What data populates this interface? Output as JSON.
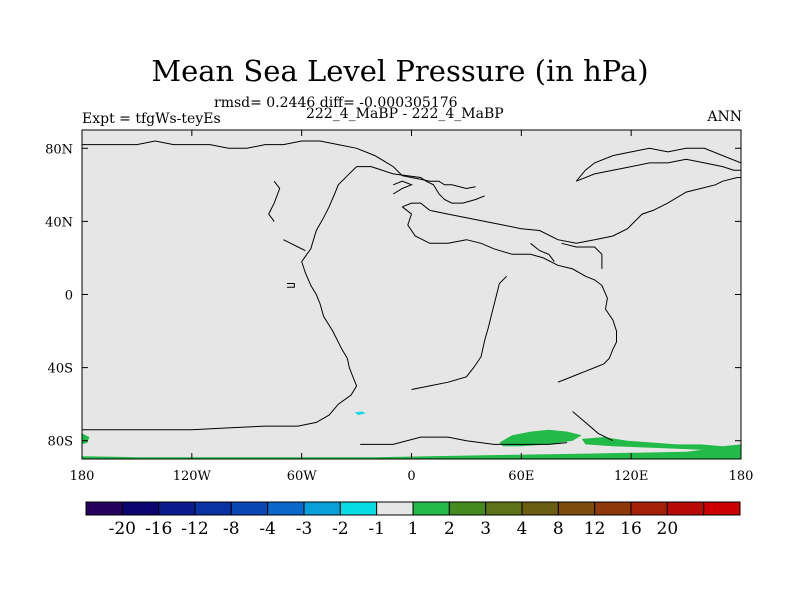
{
  "title": "Mean Sea Level Pressure (in hPa)",
  "stats_line": "rmsd= 0.2446 diff= -0.000305176",
  "left_label": "Expt = tfgWs-teyEs",
  "center_label": "222_4_MaBP - 222_4_MaBP",
  "right_label": "ANN",
  "chart_data": {
    "type": "heatmap",
    "title": "Mean Sea Level Pressure (in hPa)",
    "xlim": [
      -180,
      180
    ],
    "ylim": [
      -90,
      90
    ],
    "x_ticks": [
      {
        "value": -180,
        "label": "180"
      },
      {
        "value": -120,
        "label": "120W"
      },
      {
        "value": -60,
        "label": "60W"
      },
      {
        "value": 0,
        "label": "0"
      },
      {
        "value": 60,
        "label": "60E"
      },
      {
        "value": 120,
        "label": "120E"
      },
      {
        "value": 180,
        "label": "180"
      }
    ],
    "y_ticks": [
      {
        "value": 80,
        "label": "80N"
      },
      {
        "value": 40,
        "label": "40N"
      },
      {
        "value": 0,
        "label": "0"
      },
      {
        "value": -40,
        "label": "40S"
      },
      {
        "value": -80,
        "label": "80S"
      }
    ],
    "background_color": "#e6e6e6",
    "colorbar": {
      "colors": [
        "#24025e",
        "#0c0570",
        "#0b1d8c",
        "#0a32a3",
        "#0847b4",
        "#0a69cb",
        "#09a0da",
        "#09dbe5",
        "#e6e6e6",
        "#22ba48",
        "#468b1f",
        "#5e7317",
        "#6b5e10",
        "#7d4c0c",
        "#8e3709",
        "#a62007",
        "#b80b06",
        "#cc0000"
      ],
      "labels": [
        "-20",
        "-16",
        "-12",
        "-8",
        "-4",
        "-3",
        "-2",
        "-1",
        "1",
        "2",
        "3",
        "4",
        "8",
        "12",
        "16",
        "20"
      ]
    },
    "anomaly_regions": [
      {
        "color": "#22ba48",
        "value": "1 to 2",
        "location": "southern band along 88S-90S, 180W to 180E",
        "polygon": [
          [
            -180,
            -88.5
          ],
          [
            -150,
            -89
          ],
          [
            -90,
            -89
          ],
          [
            -20,
            -89
          ],
          [
            40,
            -88
          ],
          [
            100,
            -87
          ],
          [
            150,
            -86
          ],
          [
            175,
            -83
          ],
          [
            180,
            -83
          ],
          [
            180,
            -90
          ],
          [
            -180,
            -90
          ]
        ]
      },
      {
        "color": "#22ba48",
        "value": "1 to 2",
        "location": "Antarctic coast off 50E-100E",
        "polygon": [
          [
            48,
            -81
          ],
          [
            55,
            -77
          ],
          [
            65,
            -75
          ],
          [
            75,
            -74
          ],
          [
            85,
            -75
          ],
          [
            93,
            -77
          ],
          [
            88,
            -80
          ],
          [
            75,
            -82
          ],
          [
            60,
            -83
          ],
          [
            50,
            -83
          ]
        ]
      },
      {
        "color": "#22ba48",
        "value": "1 to 2",
        "location": "Antarctic coast 95E-175E",
        "polygon": [
          [
            93,
            -79
          ],
          [
            105,
            -78
          ],
          [
            118,
            -80
          ],
          [
            132,
            -81
          ],
          [
            145,
            -82
          ],
          [
            158,
            -82
          ],
          [
            170,
            -83
          ],
          [
            180,
            -82
          ],
          [
            180,
            -86
          ],
          [
            160,
            -85
          ],
          [
            135,
            -84
          ],
          [
            110,
            -83
          ],
          [
            95,
            -82
          ]
        ]
      },
      {
        "color": "#22ba48",
        "value": "1 to 2",
        "location": "near 180W, 78S",
        "polygon": [
          [
            -180,
            -76
          ],
          [
            -176,
            -78
          ],
          [
            -177,
            -81
          ],
          [
            -180,
            -82
          ]
        ]
      },
      {
        "color": "#09dbe5",
        "value": "-2 to -1",
        "location": "small spot near 30W, 65S",
        "polygon": [
          [
            -31,
            -64.5
          ],
          [
            -27,
            -64
          ],
          [
            -25,
            -65
          ],
          [
            -29,
            -66
          ]
        ]
      }
    ],
    "coastlines": [
      [
        [
          -180,
          82
        ],
        [
          -150,
          82
        ],
        [
          -140,
          84
        ],
        [
          -130,
          82
        ],
        [
          -120,
          82
        ],
        [
          -110,
          82
        ],
        [
          -100,
          80
        ],
        [
          -90,
          80
        ],
        [
          -80,
          82
        ],
        [
          -70,
          82
        ],
        [
          -60,
          84
        ],
        [
          -50,
          84
        ],
        [
          -40,
          82
        ],
        [
          -30,
          80
        ],
        [
          -20,
          76
        ],
        [
          -10,
          70
        ],
        [
          -5,
          65
        ],
        [
          0,
          64
        ],
        [
          5,
          63
        ],
        [
          10,
          62
        ],
        [
          15,
          62
        ],
        [
          18,
          60
        ],
        [
          22,
          60
        ],
        [
          30,
          58
        ],
        [
          35,
          59
        ]
      ],
      [
        [
          -180,
          -74
        ],
        [
          -150,
          -74
        ],
        [
          -120,
          -74
        ],
        [
          -100,
          -73
        ],
        [
          -80,
          -72
        ],
        [
          -62,
          -72
        ],
        [
          -52,
          -70
        ],
        [
          -45,
          -66
        ],
        [
          -40,
          -60
        ],
        [
          -33,
          -55
        ],
        [
          -30,
          -50
        ],
        [
          -32,
          -45
        ],
        [
          -34,
          -40
        ],
        [
          -35,
          -35
        ],
        [
          -38,
          -30
        ],
        [
          -43,
          -20
        ],
        [
          -48,
          -12
        ],
        [
          -50,
          -5
        ],
        [
          -52,
          0
        ],
        [
          -55,
          5
        ],
        [
          -58,
          12
        ],
        [
          -60,
          18
        ],
        [
          -55,
          25
        ],
        [
          -52,
          35
        ],
        [
          -48,
          42
        ],
        [
          -45,
          48
        ],
        [
          -42,
          55
        ],
        [
          -40,
          60
        ],
        [
          -35,
          65
        ],
        [
          -30,
          70
        ]
      ],
      [
        [
          -75,
          62
        ],
        [
          -72,
          58
        ],
        [
          -75,
          50
        ],
        [
          -78,
          44
        ],
        [
          -75,
          40
        ]
      ],
      [
        [
          -70,
          30
        ],
        [
          -66,
          28
        ],
        [
          -62,
          26
        ],
        [
          -58,
          24
        ]
      ],
      [
        [
          -68,
          6
        ],
        [
          -64,
          6
        ],
        [
          -64,
          4
        ],
        [
          -68,
          4
        ]
      ],
      [
        [
          -30,
          70
        ],
        [
          -22,
          70
        ],
        [
          -10,
          66
        ],
        [
          5,
          64
        ],
        [
          8,
          62
        ],
        [
          12,
          60
        ],
        [
          15,
          55
        ],
        [
          18,
          52
        ],
        [
          22,
          50
        ],
        [
          28,
          50
        ],
        [
          35,
          52
        ],
        [
          40,
          54
        ]
      ],
      [
        [
          -10,
          55
        ],
        [
          -5,
          58
        ],
        [
          0,
          60
        ],
        [
          -5,
          62
        ],
        [
          -10,
          60
        ]
      ],
      [
        [
          -5,
          48
        ],
        [
          0,
          44
        ],
        [
          -2,
          38
        ],
        [
          2,
          32
        ],
        [
          10,
          28
        ],
        [
          20,
          28
        ],
        [
          30,
          30
        ],
        [
          38,
          28
        ],
        [
          45,
          25
        ],
        [
          55,
          22
        ],
        [
          60,
          22
        ],
        [
          65,
          22
        ],
        [
          72,
          20
        ],
        [
          80,
          16
        ],
        [
          88,
          14
        ],
        [
          95,
          10
        ],
        [
          100,
          8
        ],
        [
          104,
          5
        ],
        [
          107,
          -2
        ],
        [
          106,
          -8
        ],
        [
          110,
          -14
        ],
        [
          112,
          -20
        ],
        [
          112,
          -26
        ],
        [
          110,
          -30
        ],
        [
          108,
          -35
        ],
        [
          105,
          -38
        ],
        [
          100,
          -40
        ],
        [
          95,
          -42
        ],
        [
          90,
          -44
        ],
        [
          85,
          -46
        ],
        [
          80,
          -48
        ]
      ],
      [
        [
          -5,
          48
        ],
        [
          0,
          50
        ],
        [
          5,
          50
        ],
        [
          10,
          46
        ],
        [
          20,
          44
        ],
        [
          30,
          42
        ],
        [
          40,
          40
        ],
        [
          50,
          38
        ],
        [
          60,
          36
        ],
        [
          70,
          35
        ],
        [
          80,
          30
        ],
        [
          90,
          28
        ],
        [
          100,
          30
        ],
        [
          110,
          32
        ],
        [
          118,
          36
        ],
        [
          122,
          40
        ],
        [
          126,
          44
        ],
        [
          132,
          46
        ],
        [
          140,
          50
        ],
        [
          150,
          56
        ],
        [
          158,
          58
        ],
        [
          166,
          60
        ],
        [
          170,
          62
        ],
        [
          178,
          64
        ],
        [
          180,
          64
        ]
      ],
      [
        [
          65,
          28
        ],
        [
          70,
          24
        ],
        [
          75,
          22
        ],
        [
          78,
          18
        ]
      ],
      [
        [
          82,
          28
        ],
        [
          90,
          26
        ],
        [
          100,
          26
        ],
        [
          104,
          22
        ],
        [
          104,
          14
        ]
      ],
      [
        [
          52,
          10
        ],
        [
          48,
          6
        ],
        [
          46,
          -2
        ],
        [
          44,
          -10
        ],
        [
          42,
          -18
        ],
        [
          40,
          -25
        ],
        [
          38,
          -34
        ],
        [
          34,
          -40
        ],
        [
          30,
          -45
        ],
        [
          20,
          -48
        ],
        [
          10,
          -50
        ],
        [
          0,
          -52
        ]
      ],
      [
        [
          88,
          -64
        ],
        [
          95,
          -70
        ],
        [
          102,
          -76
        ],
        [
          110,
          -80
        ]
      ],
      [
        [
          -28,
          -82
        ],
        [
          -10,
          -82
        ],
        [
          5,
          -78
        ],
        [
          20,
          -78
        ],
        [
          30,
          -80
        ],
        [
          45,
          -82
        ],
        [
          60,
          -82
        ],
        [
          75,
          -82
        ],
        [
          85,
          -81
        ]
      ],
      [
        [
          140,
          72
        ],
        [
          150,
          74
        ],
        [
          160,
          72
        ],
        [
          170,
          70
        ],
        [
          176,
          68
        ],
        [
          180,
          68
        ]
      ],
      [
        [
          90,
          62
        ],
        [
          100,
          66
        ],
        [
          110,
          68
        ],
        [
          120,
          70
        ],
        [
          130,
          72
        ],
        [
          140,
          72
        ]
      ],
      [
        [
          180,
          72
        ],
        [
          170,
          76
        ],
        [
          160,
          80
        ],
        [
          150,
          80
        ],
        [
          140,
          78
        ],
        [
          130,
          80
        ],
        [
          120,
          78
        ],
        [
          110,
          76
        ],
        [
          100,
          72
        ],
        [
          95,
          68
        ],
        [
          90,
          62
        ]
      ],
      [
        [
          -180,
          82
        ],
        [
          -180,
          90
        ]
      ]
    ]
  }
}
